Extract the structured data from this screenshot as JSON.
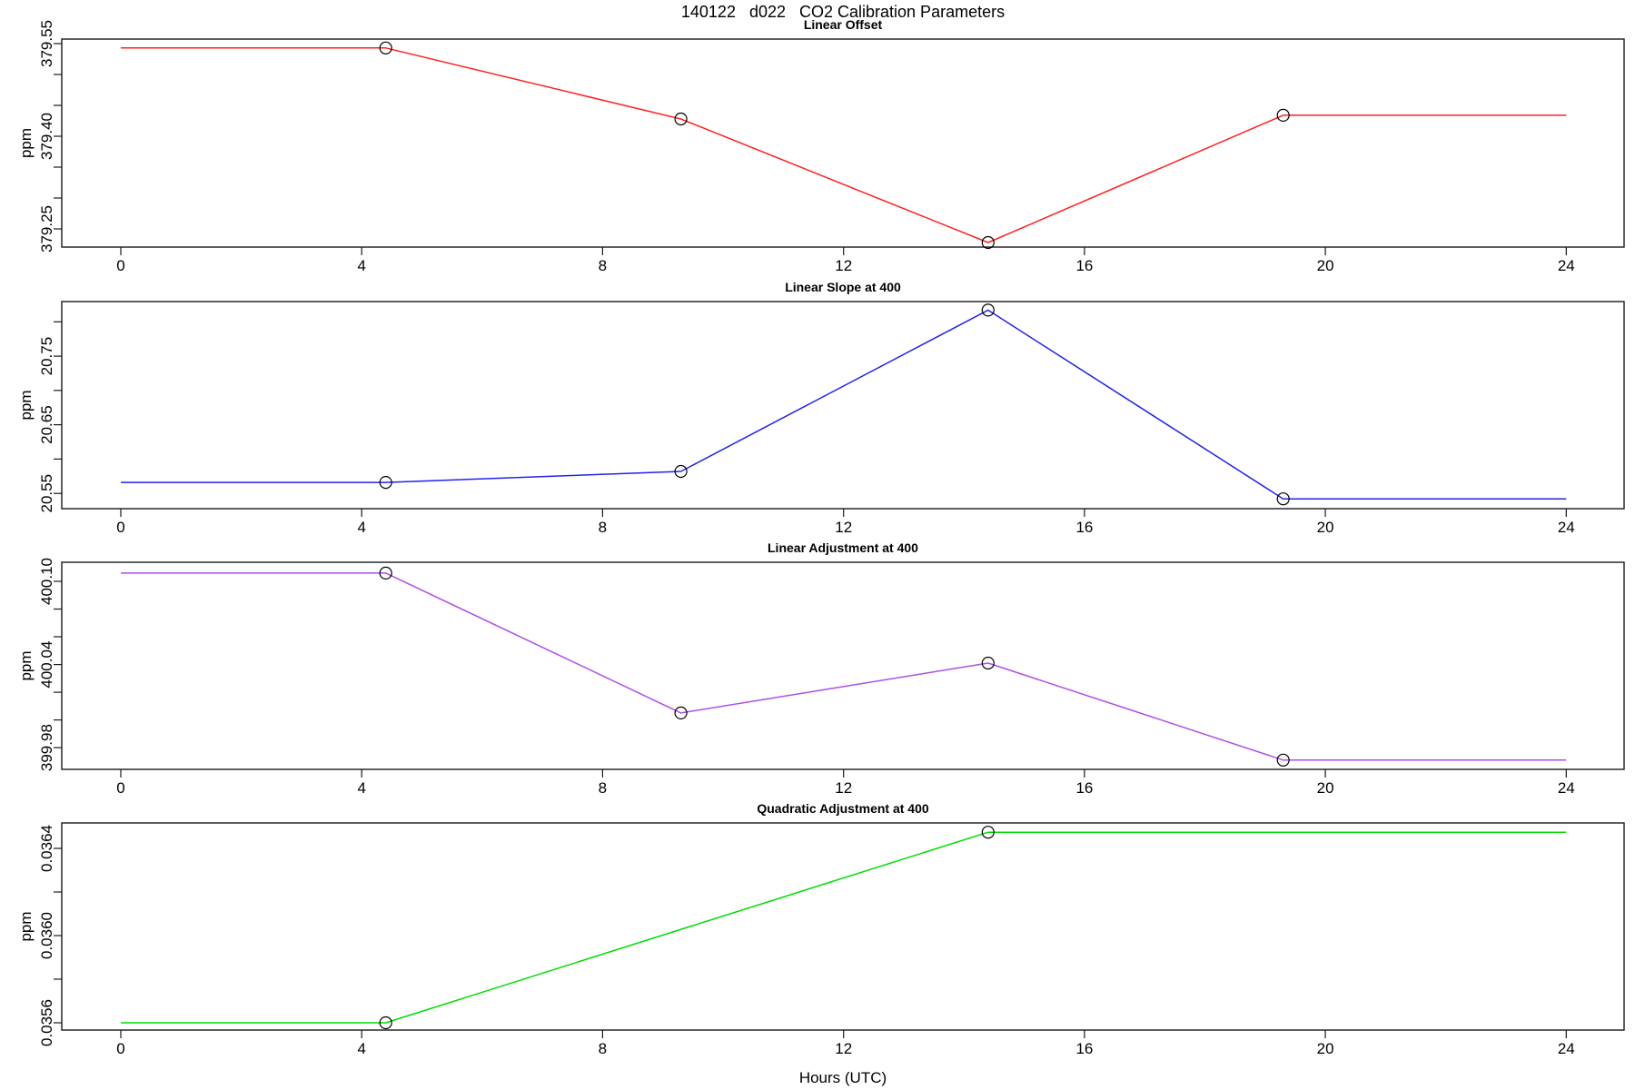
{
  "figure": {
    "title": "140122   d022   CO2 Calibration Parameters",
    "xlabel": "Hours (UTC)",
    "background_color": "#ffffff",
    "axis_color": "#1a1a1a"
  },
  "chart_data": [
    {
      "type": "line",
      "title": "Linear Offset",
      "ylabel": "ppm",
      "color": "#ff2020",
      "marker": "open-circle",
      "x": [
        4.4,
        9.3,
        14.4,
        19.3
      ],
      "y": [
        379.543,
        379.428,
        379.228,
        379.434
      ],
      "line_span_hours": [
        0,
        24
      ],
      "xlim": [
        -0.98,
        24.96
      ],
      "ylim": [
        379.2206,
        379.5574
      ],
      "xticks": [
        0,
        4,
        8,
        12,
        16,
        20,
        24
      ],
      "yticks": [
        {
          "v": 379.25,
          "label": "379.25"
        },
        {
          "v": 379.3,
          "label": ""
        },
        {
          "v": 379.35,
          "label": ""
        },
        {
          "v": 379.4,
          "label": "379.40"
        },
        {
          "v": 379.45,
          "label": ""
        },
        {
          "v": 379.5,
          "label": ""
        },
        {
          "v": 379.55,
          "label": "379.55"
        }
      ],
      "grid": false,
      "legend": null
    },
    {
      "type": "line",
      "title": "Linear Slope at 400",
      "ylabel": "ppm",
      "color": "#2222ee",
      "marker": "open-circle",
      "x": [
        4.4,
        9.3,
        14.4,
        19.3
      ],
      "y": [
        20.566,
        20.582,
        20.817,
        20.542
      ],
      "line_span_hours": [
        0,
        24
      ],
      "xlim": [
        -0.98,
        24.96
      ],
      "ylim": [
        20.5277,
        20.8295
      ],
      "xticks": [
        0,
        4,
        8,
        12,
        16,
        20,
        24
      ],
      "yticks": [
        {
          "v": 20.55,
          "label": "20.55"
        },
        {
          "v": 20.6,
          "label": ""
        },
        {
          "v": 20.65,
          "label": "20.65"
        },
        {
          "v": 20.7,
          "label": ""
        },
        {
          "v": 20.75,
          "label": "20.75"
        },
        {
          "v": 20.8,
          "label": ""
        }
      ],
      "grid": false,
      "legend": null
    },
    {
      "type": "line",
      "title": "Linear Adjustment at 400",
      "ylabel": "ppm",
      "color": "#ae4fe8",
      "marker": "open-circle",
      "x": [
        4.4,
        9.3,
        14.4,
        19.3
      ],
      "y": [
        400.106,
        400.005,
        400.041,
        399.971
      ],
      "line_span_hours": [
        0,
        24
      ],
      "xlim": [
        -0.98,
        24.96
      ],
      "ylim": [
        399.9643,
        400.1138
      ],
      "xticks": [
        0,
        4,
        8,
        12,
        16,
        20,
        24
      ],
      "yticks": [
        {
          "v": 399.98,
          "label": "399.98"
        },
        {
          "v": 400.0,
          "label": ""
        },
        {
          "v": 400.02,
          "label": ""
        },
        {
          "v": 400.04,
          "label": "400.04"
        },
        {
          "v": 400.06,
          "label": ""
        },
        {
          "v": 400.08,
          "label": ""
        },
        {
          "v": 400.1,
          "label": "400.10"
        }
      ],
      "grid": false,
      "legend": null
    },
    {
      "type": "line",
      "title": "Quadratic Adjustment at 400",
      "ylabel": "ppm",
      "color": "#00dd00",
      "marker": "open-circle",
      "x": [
        4.4,
        14.4
      ],
      "y": [
        0.0356,
        0.036474
      ],
      "line_span_hours": [
        0,
        24
      ],
      "xlim": [
        -0.98,
        24.96
      ],
      "ylim": [
        0.0355667,
        0.0365167
      ],
      "xticks": [
        0,
        4,
        8,
        12,
        16,
        20,
        24
      ],
      "yticks": [
        {
          "v": 0.0356,
          "label": "0.0356"
        },
        {
          "v": 0.0358,
          "label": ""
        },
        {
          "v": 0.036,
          "label": "0.0360"
        },
        {
          "v": 0.0362,
          "label": ""
        },
        {
          "v": 0.0364,
          "label": "0.0364"
        }
      ],
      "grid": false,
      "legend": null
    }
  ]
}
